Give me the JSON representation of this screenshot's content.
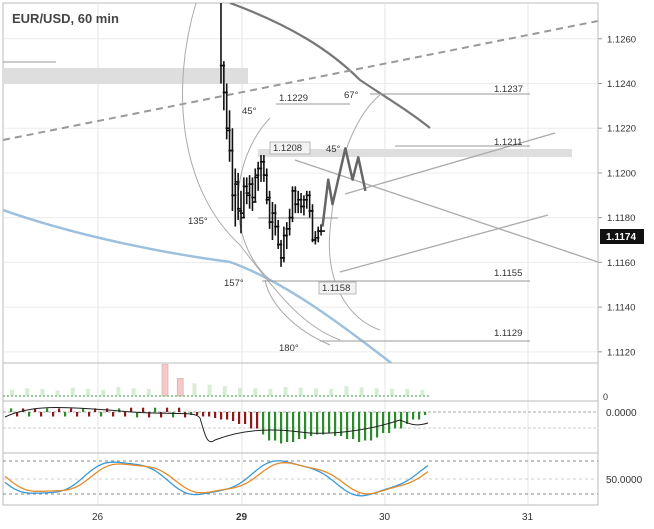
{
  "chart_data": {
    "type": "candlestick",
    "title": "EUR/USD, 60 min",
    "current_price": "1.1174",
    "y_ticks": [
      "1.1260",
      "1.1240",
      "1.1220",
      "1.1200",
      "1.1180",
      "1.1160",
      "1.1140",
      "1.1120"
    ],
    "ylim": [
      1.1115,
      1.1276
    ],
    "x_ticks": [
      "26",
      "29",
      "30",
      "31"
    ],
    "grid": true,
    "bars": [
      {
        "x": 0.86,
        "o": 1.129,
        "h": 1.13,
        "l": 1.124,
        "c": 1.1248
      },
      {
        "x": 0.88,
        "o": 1.1248,
        "h": 1.125,
        "l": 1.1228,
        "c": 1.1236
      },
      {
        "x": 0.9,
        "o": 1.1236,
        "h": 1.124,
        "l": 1.1215,
        "c": 1.1219
      },
      {
        "x": 0.92,
        "o": 1.122,
        "h": 1.1228,
        "l": 1.1205,
        "c": 1.121
      },
      {
        "x": 0.94,
        "o": 1.121,
        "h": 1.122,
        "l": 1.1183,
        "c": 1.119
      },
      {
        "x": 0.96,
        "o": 1.119,
        "h": 1.1202,
        "l": 1.1176,
        "c": 1.1196
      },
      {
        "x": 0.98,
        "o": 1.1195,
        "h": 1.12,
        "l": 1.1179,
        "c": 1.1183
      },
      {
        "x": 1.0,
        "o": 1.1184,
        "h": 1.1192,
        "l": 1.1173,
        "c": 1.118
      },
      {
        "x": 1.02,
        "o": 1.1182,
        "h": 1.1198,
        "l": 1.118,
        "c": 1.1194
      },
      {
        "x": 1.04,
        "o": 1.1194,
        "h": 1.1198,
        "l": 1.1186,
        "c": 1.119
      },
      {
        "x": 1.06,
        "o": 1.1191,
        "h": 1.1199,
        "l": 1.1184,
        "c": 1.1195
      },
      {
        "x": 1.08,
        "o": 1.1195,
        "h": 1.1198,
        "l": 1.1183,
        "c": 1.1187
      },
      {
        "x": 1.1,
        "o": 1.1189,
        "h": 1.1202,
        "l": 1.1187,
        "c": 1.1199
      },
      {
        "x": 1.12,
        "o": 1.1198,
        "h": 1.1205,
        "l": 1.1192,
        "c": 1.1202
      },
      {
        "x": 1.14,
        "o": 1.1202,
        "h": 1.1208,
        "l": 1.1196,
        "c": 1.1205
      },
      {
        "x": 1.16,
        "o": 1.1205,
        "h": 1.1208,
        "l": 1.1196,
        "c": 1.1199
      },
      {
        "x": 1.18,
        "o": 1.1199,
        "h": 1.1202,
        "l": 1.1186,
        "c": 1.1189
      },
      {
        "x": 1.2,
        "o": 1.1188,
        "h": 1.1192,
        "l": 1.1175,
        "c": 1.1178
      },
      {
        "x": 1.22,
        "o": 1.1178,
        "h": 1.1187,
        "l": 1.117,
        "c": 1.1182
      },
      {
        "x": 1.24,
        "o": 1.1182,
        "h": 1.1186,
        "l": 1.1172,
        "c": 1.1176
      },
      {
        "x": 1.26,
        "o": 1.1176,
        "h": 1.1179,
        "l": 1.1166,
        "c": 1.1168
      },
      {
        "x": 1.28,
        "o": 1.1168,
        "h": 1.117,
        "l": 1.1158,
        "c": 1.1162
      },
      {
        "x": 1.3,
        "o": 1.1162,
        "h": 1.1176,
        "l": 1.116,
        "c": 1.1172
      },
      {
        "x": 1.32,
        "o": 1.1172,
        "h": 1.1178,
        "l": 1.1166,
        "c": 1.1175
      },
      {
        "x": 1.34,
        "o": 1.1175,
        "h": 1.1184,
        "l": 1.1172,
        "c": 1.118
      },
      {
        "x": 1.36,
        "o": 1.118,
        "h": 1.1194,
        "l": 1.1178,
        "c": 1.1192
      },
      {
        "x": 1.38,
        "o": 1.1192,
        "h": 1.1194,
        "l": 1.1182,
        "c": 1.1186
      },
      {
        "x": 1.4,
        "o": 1.1186,
        "h": 1.1192,
        "l": 1.1182,
        "c": 1.1188
      },
      {
        "x": 1.42,
        "o": 1.1188,
        "h": 1.1191,
        "l": 1.1182,
        "c": 1.1185
      },
      {
        "x": 1.44,
        "o": 1.1185,
        "h": 1.119,
        "l": 1.1181,
        "c": 1.1188
      },
      {
        "x": 1.46,
        "o": 1.1188,
        "h": 1.1192,
        "l": 1.1184,
        "c": 1.119
      },
      {
        "x": 1.48,
        "o": 1.119,
        "h": 1.1192,
        "l": 1.118,
        "c": 1.1183
      },
      {
        "x": 1.5,
        "o": 1.1183,
        "h": 1.1186,
        "l": 1.1169,
        "c": 1.117
      },
      {
        "x": 1.52,
        "o": 1.117,
        "h": 1.1174,
        "l": 1.1168,
        "c": 1.1171
      },
      {
        "x": 1.54,
        "o": 1.1171,
        "h": 1.1176,
        "l": 1.1169,
        "c": 1.1174
      },
      {
        "x": 1.56,
        "o": 1.1174,
        "h": 1.1177,
        "l": 1.1172,
        "c": 1.1174
      }
    ],
    "forecast_path": [
      [
        1.57,
        1.1176
      ],
      [
        1.61,
        1.1197
      ],
      [
        1.64,
        1.1186
      ],
      [
        1.73,
        1.1211
      ],
      [
        1.78,
        1.1197
      ],
      [
        1.82,
        1.1207
      ],
      [
        1.87,
        1.1192
      ]
    ],
    "level_labels": [
      "1.1237",
      "1.1211",
      "1.1155",
      "1.1129",
      "1.1229",
      "1.1208",
      "1.1158"
    ],
    "angle_labels": [
      "45°",
      "67°",
      "45°",
      "135°",
      "157°",
      "180°"
    ],
    "volume": [
      0.9,
      1.1,
      1.0,
      0.8,
      1.2,
      1.0,
      0.9,
      1.3,
      1.1,
      1.0,
      4.5,
      2.5,
      1.8,
      1.6,
      1.4,
      1.2,
      1.1,
      1.0,
      1.3,
      1.2,
      1.1,
      1.0,
      1.4,
      1.2,
      1.1,
      1.0,
      1.0,
      0.9
    ],
    "macd": {
      "zero_label": "0.0000",
      "hist": [
        -0.1,
        -0.15,
        -0.2,
        -0.25,
        -0.3,
        -0.4,
        -0.55,
        -0.75,
        -0.95,
        -1.05,
        -1.0,
        -0.9,
        -0.8,
        -0.75,
        -0.7,
        -0.8,
        -0.9,
        -1.0,
        -0.95,
        -0.85,
        -0.7,
        -0.55,
        -0.4,
        -0.25,
        -0.1
      ]
    },
    "stochastic": {
      "label": "50.0000"
    }
  }
}
